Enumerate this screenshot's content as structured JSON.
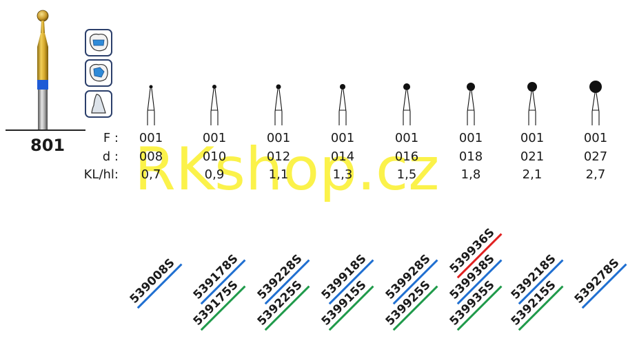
{
  "model": "801",
  "watermark": "RKshop.cz",
  "labels": {
    "F": "F :",
    "d": "d :",
    "kl": "KL/hl:"
  },
  "columns": [
    {
      "F": "001",
      "d": "008",
      "kl": "0,7",
      "codes": [
        {
          "code": "539008S",
          "color": "blue"
        }
      ]
    },
    {
      "F": "001",
      "d": "010",
      "kl": "0,9",
      "codes": [
        {
          "code": "539178S",
          "color": "blue"
        },
        {
          "code": "539175S",
          "color": "green"
        }
      ]
    },
    {
      "F": "001",
      "d": "012",
      "kl": "1,1",
      "codes": [
        {
          "code": "539228S",
          "color": "blue"
        },
        {
          "code": "539225S",
          "color": "green"
        }
      ]
    },
    {
      "F": "001",
      "d": "014",
      "kl": "1,3",
      "codes": [
        {
          "code": "539918S",
          "color": "blue"
        },
        {
          "code": "539915S",
          "color": "green"
        }
      ]
    },
    {
      "F": "001",
      "d": "016",
      "kl": "1,5",
      "codes": [
        {
          "code": "539928S",
          "color": "blue"
        },
        {
          "code": "539925S",
          "color": "green"
        }
      ]
    },
    {
      "F": "001",
      "d": "018",
      "kl": "1,8",
      "codes": [
        {
          "code": "539936S",
          "color": "red"
        },
        {
          "code": "539938S",
          "color": "blue"
        },
        {
          "code": "539935S",
          "color": "green"
        }
      ]
    },
    {
      "F": "001",
      "d": "021",
      "kl": "2,1",
      "codes": [
        {
          "code": "539218S",
          "color": "blue"
        },
        {
          "code": "539215S",
          "color": "green"
        }
      ]
    },
    {
      "F": "001",
      "d": "027",
      "kl": "2,7",
      "codes": [
        {
          "code": "539278S",
          "color": "blue"
        }
      ]
    }
  ],
  "colors": {
    "blue": "#1f6fd1",
    "green": "#1f9a4a",
    "red": "#e02020",
    "watermark": "#fbf24a"
  },
  "icons": [
    "tooth-occlusal-icon",
    "tooth-cavity-icon",
    "tooth-profile-icon"
  ]
}
